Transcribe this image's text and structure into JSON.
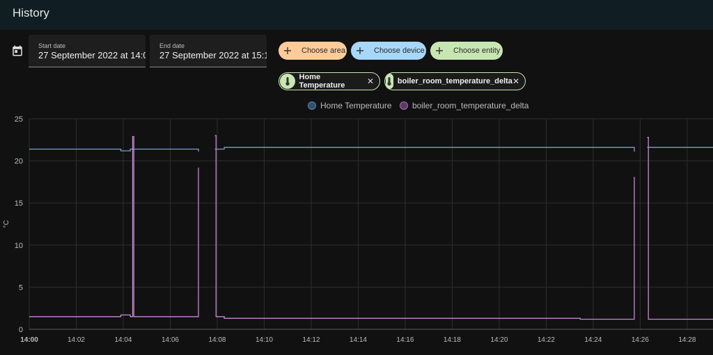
{
  "header": {
    "title": "History"
  },
  "date_range": {
    "icon": "calendar-icon",
    "start_label": "Start date",
    "start_value": "27 September 2022 at 14:0",
    "end_label": "End date",
    "end_value": "27 September 2022 at 15:1"
  },
  "target_picker": {
    "choose_area": "Choose area",
    "choose_device": "Choose device",
    "choose_entity": "Choose entity",
    "colors": {
      "area": "#ffcc99",
      "device": "#a7d8fa",
      "entity": "#c8e6b2"
    }
  },
  "selected_entities": [
    {
      "label": "Home Temperature",
      "icon": "thermometer-icon",
      "remove_icon": "close-icon"
    },
    {
      "label": "boiler_room_temperature_delta",
      "icon": "thermometer-icon",
      "remove_icon": "close-icon"
    }
  ],
  "chart_data": {
    "type": "line",
    "legend_placement": "top-center",
    "ylabel": "°C",
    "ylim": [
      0,
      25
    ],
    "yticks": [
      "0",
      "5",
      "10",
      "15",
      "20",
      "25"
    ],
    "xticks": [
      "14:00",
      "14:02",
      "14:04",
      "14:06",
      "14:08",
      "14:10",
      "14:12",
      "14:14",
      "14:16",
      "14:18",
      "14:20",
      "14:22",
      "14:24",
      "14:26",
      "14:28"
    ],
    "xlim_minutes": [
      0,
      29.1
    ],
    "grid": true,
    "series": [
      {
        "name": "Home Temperature",
        "color": "#7b9fd0",
        "segments": [
          [
            [
              0,
              21.4
            ],
            [
              3.9,
              21.4
            ],
            [
              3.9,
              21.2
            ],
            [
              4.3,
              21.2
            ],
            [
              4.3,
              21.4
            ],
            [
              7.2,
              21.4
            ],
            [
              7.2,
              21.1
            ]
          ],
          [
            [
              7.9,
              21.4
            ],
            [
              8.3,
              21.4
            ],
            [
              8.3,
              21.6
            ],
            [
              25.75,
              21.6
            ],
            [
              25.75,
              21.1
            ]
          ],
          [
            [
              26.3,
              21.6
            ],
            [
              29.1,
              21.6
            ]
          ]
        ]
      },
      {
        "name": "boiler_room_temperature_delta",
        "color": "#c888d8",
        "segments": [
          [
            [
              0,
              1.5
            ],
            [
              3.9,
              1.5
            ],
            [
              3.9,
              1.7
            ],
            [
              4.3,
              1.7
            ],
            [
              4.3,
              1.5
            ],
            [
              4.4,
              1.5
            ],
            [
              4.4,
              22.9
            ],
            [
              4.45,
              22.9
            ],
            [
              4.45,
              1.5
            ],
            [
              7.2,
              1.5
            ],
            [
              7.2,
              19.2
            ]
          ],
          [
            [
              7.9,
              23.0
            ],
            [
              7.95,
              23.0
            ],
            [
              7.95,
              1.5
            ],
            [
              8.3,
              1.5
            ],
            [
              8.3,
              1.3
            ],
            [
              23.45,
              1.3
            ],
            [
              23.45,
              1.2
            ],
            [
              25.75,
              1.2
            ],
            [
              25.75,
              18.1
            ]
          ],
          [
            [
              26.3,
              22.8
            ],
            [
              26.35,
              22.8
            ],
            [
              26.35,
              1.2
            ],
            [
              29.1,
              1.2
            ]
          ]
        ]
      }
    ]
  }
}
